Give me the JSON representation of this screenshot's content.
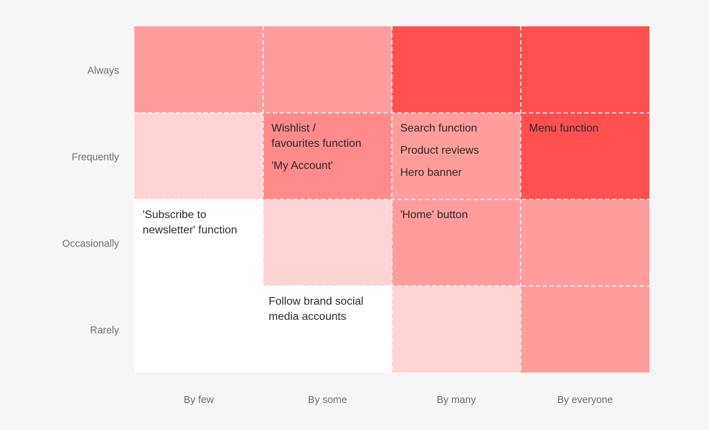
{
  "chart_data": {
    "type": "heatmap",
    "title": "",
    "xlabel": "",
    "ylabel": "",
    "columns": [
      "By few",
      "By some",
      "By many",
      "By everyone"
    ],
    "rows": [
      "Always",
      "Frequently",
      "Occasionally",
      "Rarely"
    ],
    "levels": [
      [
        2,
        2,
        4,
        4
      ],
      [
        1,
        3,
        2,
        4
      ],
      [
        0,
        1,
        2,
        2
      ],
      [
        0,
        0,
        1,
        2
      ]
    ],
    "level_colors": [
      "#ffffff",
      "#ffd4d4",
      "#ff9d9d",
      "#ff8a8a",
      "#ff5050"
    ],
    "items": [
      {
        "row": 1,
        "col": 1,
        "labels": [
          "Wishlist / favourites function",
          "'My Account'"
        ]
      },
      {
        "row": 1,
        "col": 2,
        "labels": [
          "Search function",
          "Product reviews",
          "Hero banner"
        ]
      },
      {
        "row": 1,
        "col": 3,
        "labels": [
          "Menu function"
        ]
      },
      {
        "row": 2,
        "col": 0,
        "labels": [
          "'Subscribe to newsletter' function"
        ]
      },
      {
        "row": 2,
        "col": 2,
        "labels": [
          "'Home' button"
        ]
      },
      {
        "row": 3,
        "col": 1,
        "labels": [
          "Follow brand social media accounts"
        ]
      }
    ],
    "grid": true
  }
}
